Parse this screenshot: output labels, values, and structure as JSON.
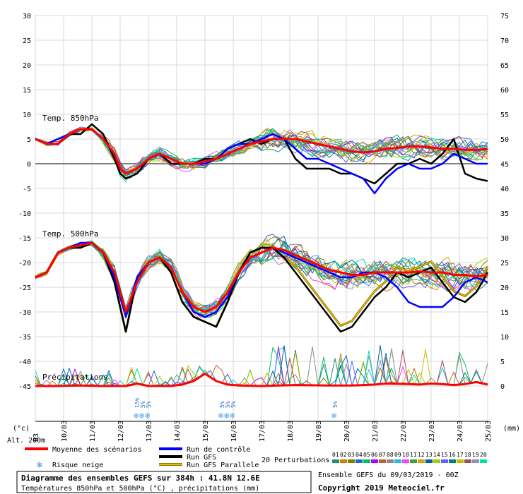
{
  "chart_data": {
    "type": "line",
    "left_ticks": [
      "30",
      "25",
      "20",
      "15",
      "10",
      "5",
      "0",
      "-5",
      "-10",
      "-15",
      "-20",
      "-25",
      "-30",
      "-35",
      "-40",
      "-45"
    ],
    "right_ticks": [
      "75",
      "70",
      "65",
      "60",
      "55",
      "50",
      "45",
      "40",
      "35",
      "30",
      "25",
      "20",
      "15",
      "10",
      "5",
      "0"
    ],
    "x_ticks": [
      "10/03",
      "11/03",
      "12/03",
      "13/03",
      "14/03",
      "15/03",
      "16/03",
      "17/03",
      "18/03",
      "19/03",
      "20/03",
      "21/03",
      "22/03",
      "23/03",
      "24/03",
      "25/03"
    ],
    "first_tick_fragment": "03",
    "left_unit": "(°c)",
    "right_unit": "(mm)",
    "alt_label": "Alt. 200m",
    "panels": {
      "t850": "Temp. 850hPa",
      "t500": "Temp. 500hPa",
      "precip": "Précipitations"
    },
    "t850_mean": [
      [
        0,
        5
      ],
      [
        2,
        4
      ],
      [
        4,
        4
      ],
      [
        6,
        6
      ],
      [
        8,
        7
      ],
      [
        10,
        7
      ],
      [
        12,
        5
      ],
      [
        14,
        2
      ],
      [
        15,
        -1
      ],
      [
        16,
        -2
      ],
      [
        18,
        -1
      ],
      [
        20,
        1
      ],
      [
        22,
        2
      ],
      [
        24,
        1
      ],
      [
        26,
        0
      ],
      [
        28,
        0
      ],
      [
        30,
        0.5
      ],
      [
        32,
        1
      ],
      [
        34,
        2
      ],
      [
        36,
        3
      ],
      [
        38,
        4
      ],
      [
        40,
        4.5
      ],
      [
        42,
        5
      ],
      [
        44,
        5
      ],
      [
        46,
        5
      ],
      [
        48,
        4.5
      ],
      [
        50,
        4
      ],
      [
        52,
        3.5
      ],
      [
        54,
        3
      ],
      [
        56,
        2.5
      ],
      [
        58,
        2.3
      ],
      [
        60,
        2.5
      ],
      [
        62,
        3
      ],
      [
        64,
        3.2
      ],
      [
        66,
        3.5
      ],
      [
        68,
        3.5
      ],
      [
        70,
        3.3
      ],
      [
        72,
        3
      ],
      [
        74,
        3
      ],
      [
        76,
        2.8
      ],
      [
        78,
        2.8
      ],
      [
        80,
        3
      ]
    ],
    "t850_gfs": [
      [
        0,
        5
      ],
      [
        2,
        4
      ],
      [
        4,
        5
      ],
      [
        6,
        6
      ],
      [
        8,
        6
      ],
      [
        10,
        8
      ],
      [
        12,
        6
      ],
      [
        14,
        1
      ],
      [
        15,
        -2
      ],
      [
        16,
        -3
      ],
      [
        18,
        -2
      ],
      [
        20,
        1
      ],
      [
        22,
        2
      ],
      [
        24,
        0
      ],
      [
        26,
        0
      ],
      [
        28,
        0
      ],
      [
        30,
        1
      ],
      [
        32,
        1
      ],
      [
        34,
        3
      ],
      [
        36,
        4
      ],
      [
        38,
        5
      ],
      [
        40,
        4
      ],
      [
        42,
        5
      ],
      [
        44,
        5
      ],
      [
        46,
        1
      ],
      [
        48,
        -1
      ],
      [
        50,
        -1
      ],
      [
        52,
        -1
      ],
      [
        54,
        -2
      ],
      [
        56,
        -2
      ],
      [
        58,
        -3
      ],
      [
        60,
        -4
      ],
      [
        62,
        -2
      ],
      [
        64,
        0
      ],
      [
        66,
        0
      ],
      [
        68,
        1
      ],
      [
        70,
        0
      ],
      [
        72,
        2
      ],
      [
        74,
        5
      ],
      [
        76,
        -2
      ],
      [
        78,
        -3
      ],
      [
        80,
        -3.5
      ]
    ],
    "t850_ctrl": [
      [
        0,
        5
      ],
      [
        2,
        4
      ],
      [
        4,
        5
      ],
      [
        6,
        6
      ],
      [
        8,
        7
      ],
      [
        10,
        7
      ],
      [
        12,
        5
      ],
      [
        14,
        2
      ],
      [
        15,
        -1
      ],
      [
        16,
        -2
      ],
      [
        18,
        -1
      ],
      [
        20,
        1
      ],
      [
        22,
        2
      ],
      [
        24,
        1
      ],
      [
        26,
        0
      ],
      [
        28,
        0
      ],
      [
        30,
        0
      ],
      [
        32,
        1
      ],
      [
        34,
        3
      ],
      [
        36,
        4
      ],
      [
        38,
        4
      ],
      [
        40,
        5
      ],
      [
        42,
        6
      ],
      [
        44,
        5
      ],
      [
        46,
        3
      ],
      [
        48,
        1
      ],
      [
        50,
        1
      ],
      [
        52,
        0
      ],
      [
        54,
        -1
      ],
      [
        56,
        -2
      ],
      [
        58,
        -3
      ],
      [
        60,
        -6
      ],
      [
        62,
        -3
      ],
      [
        64,
        -1
      ],
      [
        66,
        0
      ],
      [
        68,
        -1
      ],
      [
        70,
        -1
      ],
      [
        72,
        0
      ],
      [
        74,
        2
      ],
      [
        76,
        1
      ],
      [
        78,
        0
      ],
      [
        80,
        0
      ]
    ],
    "t500_mean": [
      [
        0,
        -23
      ],
      [
        2,
        -22
      ],
      [
        4,
        -18
      ],
      [
        6,
        -17
      ],
      [
        8,
        -16.5
      ],
      [
        10,
        -16
      ],
      [
        12,
        -18
      ],
      [
        14,
        -22
      ],
      [
        16,
        -30
      ],
      [
        18,
        -24
      ],
      [
        20,
        -20
      ],
      [
        22,
        -19
      ],
      [
        24,
        -21
      ],
      [
        26,
        -26
      ],
      [
        28,
        -29
      ],
      [
        30,
        -30
      ],
      [
        32,
        -29
      ],
      [
        34,
        -26
      ],
      [
        36,
        -22
      ],
      [
        38,
        -19
      ],
      [
        40,
        -18
      ],
      [
        42,
        -17
      ],
      [
        44,
        -17.5
      ],
      [
        46,
        -18.5
      ],
      [
        48,
        -19.5
      ],
      [
        50,
        -20.5
      ],
      [
        52,
        -21.5
      ],
      [
        54,
        -22
      ],
      [
        56,
        -22.5
      ],
      [
        58,
        -22.5
      ],
      [
        60,
        -22
      ],
      [
        62,
        -22
      ],
      [
        64,
        -22
      ],
      [
        66,
        -22
      ],
      [
        68,
        -21.8
      ],
      [
        70,
        -22
      ],
      [
        72,
        -22
      ],
      [
        74,
        -22.5
      ],
      [
        76,
        -22.5
      ],
      [
        78,
        -22.8
      ],
      [
        80,
        -22.5
      ]
    ],
    "t500_gfs": [
      [
        0,
        -23
      ],
      [
        2,
        -22
      ],
      [
        4,
        -18
      ],
      [
        6,
        -17
      ],
      [
        8,
        -17
      ],
      [
        10,
        -16
      ],
      [
        12,
        -18
      ],
      [
        14,
        -24
      ],
      [
        16,
        -34
      ],
      [
        18,
        -23
      ],
      [
        20,
        -20
      ],
      [
        22,
        -19
      ],
      [
        24,
        -22
      ],
      [
        26,
        -28
      ],
      [
        28,
        -31
      ],
      [
        30,
        -32
      ],
      [
        32,
        -33
      ],
      [
        34,
        -28
      ],
      [
        36,
        -22
      ],
      [
        38,
        -18
      ],
      [
        40,
        -17
      ],
      [
        42,
        -17
      ],
      [
        44,
        -19
      ],
      [
        46,
        -22
      ],
      [
        48,
        -25
      ],
      [
        50,
        -28
      ],
      [
        52,
        -31
      ],
      [
        54,
        -34
      ],
      [
        56,
        -33
      ],
      [
        58,
        -30
      ],
      [
        60,
        -27
      ],
      [
        62,
        -25
      ],
      [
        64,
        -22
      ],
      [
        66,
        -23
      ],
      [
        68,
        -22
      ],
      [
        70,
        -21
      ],
      [
        72,
        -24
      ],
      [
        74,
        -27
      ],
      [
        76,
        -28
      ],
      [
        78,
        -26
      ],
      [
        80,
        -22
      ]
    ],
    "t500_ctrl": [
      [
        0,
        -23
      ],
      [
        2,
        -22
      ],
      [
        4,
        -18
      ],
      [
        6,
        -17
      ],
      [
        8,
        -16
      ],
      [
        10,
        -16
      ],
      [
        12,
        -18
      ],
      [
        14,
        -23
      ],
      [
        16,
        -31
      ],
      [
        18,
        -23
      ],
      [
        20,
        -20
      ],
      [
        22,
        -19
      ],
      [
        24,
        -21
      ],
      [
        26,
        -26
      ],
      [
        28,
        -30
      ],
      [
        30,
        -31
      ],
      [
        32,
        -30
      ],
      [
        34,
        -27
      ],
      [
        36,
        -22
      ],
      [
        38,
        -19
      ],
      [
        40,
        -18
      ],
      [
        42,
        -17
      ],
      [
        44,
        -18
      ],
      [
        46,
        -19
      ],
      [
        48,
        -20
      ],
      [
        50,
        -21
      ],
      [
        52,
        -22
      ],
      [
        54,
        -23
      ],
      [
        56,
        -23
      ],
      [
        58,
        -22
      ],
      [
        60,
        -22
      ],
      [
        62,
        -23
      ],
      [
        64,
        -25
      ],
      [
        66,
        -28
      ],
      [
        68,
        -29
      ],
      [
        70,
        -29
      ],
      [
        72,
        -29
      ],
      [
        74,
        -27
      ],
      [
        76,
        -24
      ],
      [
        78,
        -23
      ],
      [
        80,
        -24
      ]
    ],
    "precip_mean": [
      [
        0,
        0
      ],
      [
        4,
        0
      ],
      [
        8,
        0.1
      ],
      [
        12,
        0
      ],
      [
        16,
        0
      ],
      [
        18,
        0.5
      ],
      [
        20,
        0
      ],
      [
        24,
        0
      ],
      [
        26,
        0.3
      ],
      [
        28,
        1
      ],
      [
        30,
        2.5
      ],
      [
        32,
        1
      ],
      [
        34,
        0.3
      ],
      [
        36,
        0.1
      ],
      [
        40,
        0
      ],
      [
        46,
        0.2
      ],
      [
        52,
        0.1
      ],
      [
        56,
        0.1
      ],
      [
        60,
        0.3
      ],
      [
        62,
        0.5
      ],
      [
        66,
        0.4
      ],
      [
        68,
        0.3
      ],
      [
        70,
        0.5
      ],
      [
        72,
        0.4
      ],
      [
        74,
        0.2
      ],
      [
        76,
        0.4
      ],
      [
        78,
        0.8
      ],
      [
        80,
        0.3
      ]
    ],
    "snow_risk": [
      [
        18,
        "15%"
      ],
      [
        19,
        "5%"
      ],
      [
        20,
        "5%"
      ],
      [
        33,
        "5%"
      ],
      [
        34,
        "5%"
      ],
      [
        35,
        "5%"
      ],
      [
        53,
        "5%"
      ]
    ]
  },
  "legend": {
    "mean": "Moyenne des scénarios",
    "snow": "Risque neige",
    "control": "Run de contrôle",
    "gfs": "Run GFS",
    "gfs_parallel": "Run GFS Parallele",
    "perturbations": "20 Perturbations",
    "pert_numbers": [
      "01",
      "02",
      "03",
      "04",
      "05",
      "06",
      "07",
      "08",
      "09",
      "10",
      "11",
      "12",
      "13",
      "14",
      "15",
      "16",
      "17",
      "18",
      "19",
      "20"
    ]
  },
  "colors": {
    "mean": "#ff0000",
    "control": "#0000ff",
    "gfs": "#000000",
    "gfs_parallel_outer": "#8a7000",
    "perturbations": [
      "#1f8f7f",
      "#d08000",
      "#808000",
      "#1a6ad0",
      "#00c060",
      "#b000ff",
      "#c06030",
      "#8a8a8a",
      "#20c0e0",
      "#ff40ff",
      "#40a040",
      "#e0a000",
      "#0060a0",
      "#a0d000",
      "#6060ff",
      "#008080",
      "#c0c000",
      "#a05050",
      "#9090c0",
      "#00e0a0"
    ]
  },
  "footer": {
    "title": "Diagramme des ensembles GEFS sur 384h : 41.8N 12.6E",
    "subtitle": "Températures 850hPa et 500hPa (°C) , précipitations (mm)",
    "ensemble": "Ensemble GEFS du 09/03/2019 - 00Z",
    "copyright": "Copyright 2019 Meteociel.fr"
  }
}
